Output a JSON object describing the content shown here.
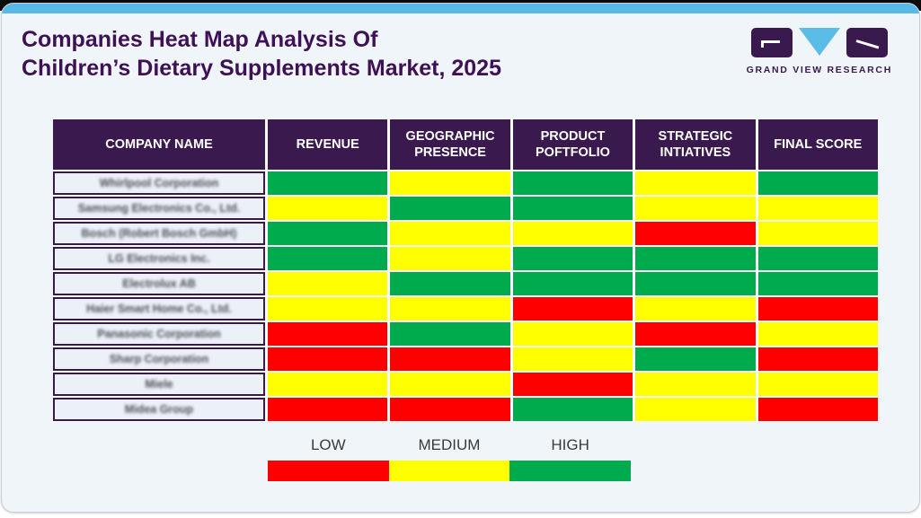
{
  "page": {
    "title_line1": "Companies Heat Map Analysis Of",
    "title_line2": "Children’s Dietary Supplements Market, 2025",
    "logo_text": "GRAND VIEW RESEARCH"
  },
  "colors": {
    "low": "#FF0000",
    "medium": "#FFFF00",
    "high": "#00AB4E",
    "header_bg": "#39194E",
    "accent_bar": "#59B9E6",
    "title_text": "#3E1157",
    "card_bg": "#EFF5F9"
  },
  "table": {
    "columns": [
      "COMPANY NAME",
      "REVENUE",
      "GEOGRAPHIC PRESENCE",
      "PRODUCT POFTFOLIO",
      "STRATEGIC INTIATIVES",
      "FINAL SCORE"
    ],
    "rows": [
      {
        "company": "Whirlpool Corporation",
        "scores": [
          "high",
          "medium",
          "high",
          "medium",
          "high"
        ]
      },
      {
        "company": "Samsung Electronics Co., Ltd.",
        "scores": [
          "medium",
          "high",
          "high",
          "medium",
          "medium"
        ]
      },
      {
        "company": "Bosch (Robert Bosch GmbH)",
        "scores": [
          "high",
          "medium",
          "medium",
          "low",
          "medium"
        ]
      },
      {
        "company": "LG Electronics Inc.",
        "scores": [
          "high",
          "medium",
          "high",
          "high",
          "high"
        ]
      },
      {
        "company": "Electrolux AB",
        "scores": [
          "medium",
          "high",
          "high",
          "high",
          "high"
        ]
      },
      {
        "company": "Haier Smart Home Co., Ltd.",
        "scores": [
          "medium",
          "medium",
          "low",
          "medium",
          "low"
        ]
      },
      {
        "company": "Panasonic Corporation",
        "scores": [
          "low",
          "high",
          "medium",
          "low",
          "medium"
        ]
      },
      {
        "company": "Sharp Corporation",
        "scores": [
          "low",
          "low",
          "medium",
          "high",
          "low"
        ]
      },
      {
        "company": "Miele",
        "scores": [
          "medium",
          "medium",
          "low",
          "medium",
          "medium"
        ]
      },
      {
        "company": "Midea Group",
        "scores": [
          "low",
          "low",
          "high",
          "medium",
          "low"
        ]
      }
    ]
  },
  "legend": {
    "items": [
      {
        "label": "LOW",
        "key": "low"
      },
      {
        "label": "MEDIUM",
        "key": "medium"
      },
      {
        "label": "HIGH",
        "key": "high"
      }
    ]
  },
  "chart_data": {
    "type": "heatmap",
    "title": "Companies Heat Map Analysis Of Children’s Dietary Supplements Market, 2025",
    "columns": [
      "REVENUE",
      "GEOGRAPHIC PRESENCE",
      "PRODUCT POFTFOLIO",
      "STRATEGIC INTIATIVES",
      "FINAL SCORE"
    ],
    "rows": [
      "Whirlpool Corporation",
      "Samsung Electronics Co., Ltd.",
      "Bosch (Robert Bosch GmbH)",
      "LG Electronics Inc.",
      "Electrolux AB",
      "Haier Smart Home Co., Ltd.",
      "Panasonic Corporation",
      "Sharp Corporation",
      "Miele",
      "Midea Group"
    ],
    "values": [
      [
        "high",
        "medium",
        "high",
        "medium",
        "high"
      ],
      [
        "medium",
        "high",
        "high",
        "medium",
        "medium"
      ],
      [
        "high",
        "medium",
        "medium",
        "low",
        "medium"
      ],
      [
        "high",
        "medium",
        "high",
        "high",
        "high"
      ],
      [
        "medium",
        "high",
        "high",
        "high",
        "high"
      ],
      [
        "medium",
        "medium",
        "low",
        "medium",
        "low"
      ],
      [
        "low",
        "high",
        "medium",
        "low",
        "medium"
      ],
      [
        "low",
        "low",
        "medium",
        "high",
        "low"
      ],
      [
        "medium",
        "medium",
        "low",
        "medium",
        "medium"
      ],
      [
        "low",
        "low",
        "high",
        "medium",
        "low"
      ]
    ],
    "scale": {
      "low": "#FF0000",
      "medium": "#FFFF00",
      "high": "#00AB4E"
    },
    "legend_labels": [
      "LOW",
      "MEDIUM",
      "HIGH"
    ],
    "legend_position": "bottom"
  }
}
